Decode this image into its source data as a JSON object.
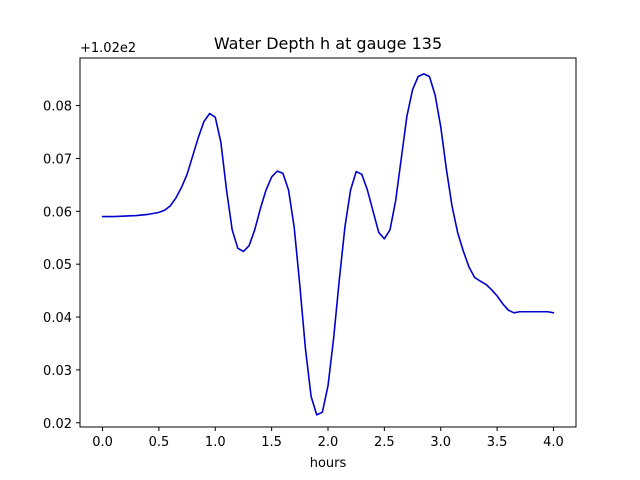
{
  "chart_data": {
    "type": "line",
    "title": "Water Depth h at gauge 135",
    "xlabel": "hours",
    "ylabel": "",
    "offset_label": "+1.02e2",
    "xlim": [
      -0.2,
      4.2
    ],
    "ylim": [
      0.0192,
      0.089
    ],
    "xticks": [
      0.0,
      0.5,
      1.0,
      1.5,
      2.0,
      2.5,
      3.0,
      3.5,
      4.0
    ],
    "xtick_labels": [
      "0.0",
      "0.5",
      "1.0",
      "1.5",
      "2.0",
      "2.5",
      "3.0",
      "3.5",
      "4.0"
    ],
    "yticks": [
      0.02,
      0.03,
      0.04,
      0.05,
      0.06,
      0.07,
      0.08
    ],
    "ytick_labels": [
      "0.02",
      "0.03",
      "0.04",
      "0.05",
      "0.06",
      "0.07",
      "0.08"
    ],
    "grid": false,
    "legend": "none",
    "series": [
      {
        "color": "#0000cc",
        "x": [
          0.0,
          0.1,
          0.2,
          0.3,
          0.4,
          0.5,
          0.55,
          0.6,
          0.65,
          0.7,
          0.75,
          0.8,
          0.85,
          0.9,
          0.95,
          1.0,
          1.05,
          1.1,
          1.15,
          1.2,
          1.25,
          1.3,
          1.35,
          1.4,
          1.45,
          1.5,
          1.55,
          1.6,
          1.65,
          1.7,
          1.75,
          1.8,
          1.85,
          1.9,
          1.95,
          2.0,
          2.05,
          2.1,
          2.15,
          2.2,
          2.25,
          2.3,
          2.35,
          2.4,
          2.45,
          2.5,
          2.55,
          2.6,
          2.65,
          2.7,
          2.75,
          2.8,
          2.85,
          2.9,
          2.95,
          3.0,
          3.05,
          3.1,
          3.15,
          3.2,
          3.25,
          3.3,
          3.35,
          3.4,
          3.45,
          3.5,
          3.55,
          3.6,
          3.65,
          3.7,
          3.75,
          3.8,
          3.85,
          3.9,
          3.95,
          4.0
        ],
        "y": [
          0.059,
          0.059,
          0.0591,
          0.0592,
          0.0594,
          0.0598,
          0.0602,
          0.061,
          0.0625,
          0.0645,
          0.067,
          0.0705,
          0.074,
          0.077,
          0.0785,
          0.0778,
          0.073,
          0.064,
          0.0565,
          0.053,
          0.0524,
          0.0535,
          0.0565,
          0.0605,
          0.064,
          0.0665,
          0.0676,
          0.0672,
          0.064,
          0.057,
          0.046,
          0.034,
          0.025,
          0.0215,
          0.022,
          0.027,
          0.036,
          0.047,
          0.057,
          0.064,
          0.0675,
          0.067,
          0.064,
          0.06,
          0.056,
          0.0548,
          0.0565,
          0.062,
          0.07,
          0.078,
          0.083,
          0.0855,
          0.086,
          0.0855,
          0.082,
          0.076,
          0.068,
          0.061,
          0.056,
          0.0525,
          0.0495,
          0.0475,
          0.0468,
          0.0462,
          0.0452,
          0.044,
          0.0425,
          0.0413,
          0.0408,
          0.041,
          0.041,
          0.041,
          0.041,
          0.041,
          0.041,
          0.0408
        ]
      }
    ]
  }
}
